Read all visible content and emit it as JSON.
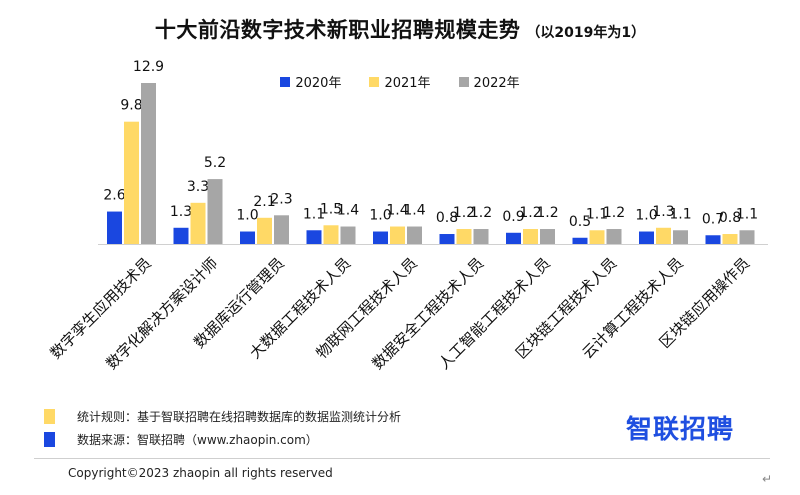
{
  "title": "十大前沿数字技术新职业招聘规模走势",
  "subtitle": "（以2019年为1）",
  "colors": {
    "2020年": "#1a47e0",
    "2021年": "#ffd966",
    "2022年": "#a6a6a6"
  },
  "chart_data": {
    "type": "bar",
    "categories": [
      "数字孪生应用技术员",
      "数字化解决方案设计师",
      "数据库运行管理员",
      "大数据工程技术人员",
      "物联网工程技术人员",
      "数据安全工程技术人员",
      "人工智能工程技术人员",
      "区块链工程技术人员",
      "云计算工程技术人员",
      "区块链应用操作员"
    ],
    "series": [
      {
        "name": "2020年",
        "values": [
          2.6,
          1.3,
          1.0,
          1.1,
          1.0,
          0.8,
          0.9,
          0.5,
          1.0,
          0.7
        ]
      },
      {
        "name": "2021年",
        "values": [
          9.8,
          3.3,
          2.1,
          1.5,
          1.4,
          1.2,
          1.2,
          1.1,
          1.3,
          0.8
        ]
      },
      {
        "name": "2022年",
        "values": [
          12.9,
          5.2,
          2.3,
          1.4,
          1.4,
          1.2,
          1.2,
          1.2,
          1.1,
          1.1
        ]
      }
    ],
    "legend_position": "top-center",
    "grid": false
  },
  "notes": {
    "rule": "统计规则：基于智联招聘在线招聘数据库的数据监测统计分析",
    "source": "数据来源：智联招聘（www.zhaopin.com）"
  },
  "logo_text": "智联招聘",
  "copyright": "Copyright©2023 zhaopin all rights reserved",
  "return_mark": "↵"
}
